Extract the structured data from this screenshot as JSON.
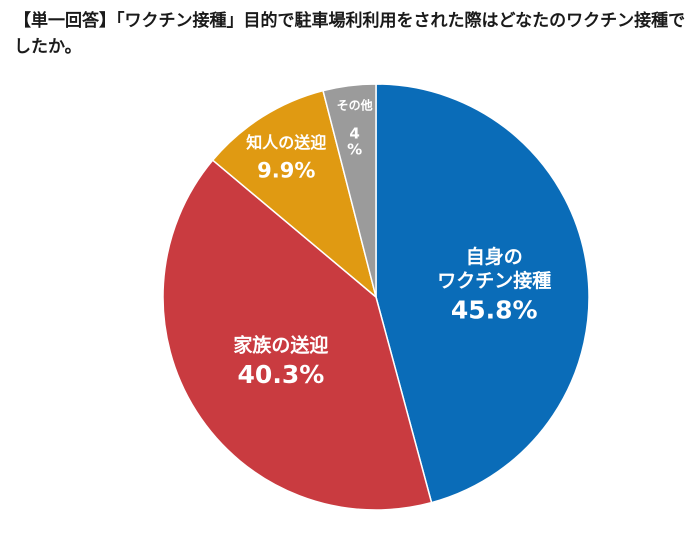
{
  "chart_data": {
    "type": "pie",
    "title": "【単一回答】「ワクチン接種」目的で駐車場利利用をされた際はどなたのワクチン接種でしたか。",
    "slices": [
      {
        "label": "自身の\nワクチン接種",
        "value": 45.8,
        "value_label": "45.8%",
        "color": "#0a6cb8"
      },
      {
        "label": "家族の送迎",
        "value": 40.3,
        "value_label": "40.3%",
        "color": "#c93b40"
      },
      {
        "label": "知人の送迎",
        "value": 9.9,
        "value_label": "9.9%",
        "color": "#e09a12"
      },
      {
        "label": "その他",
        "value": 4,
        "value_label": "4\n%",
        "color": "#9b9b9b"
      }
    ],
    "start": "12 o'clock",
    "direction": "clockwise"
  }
}
